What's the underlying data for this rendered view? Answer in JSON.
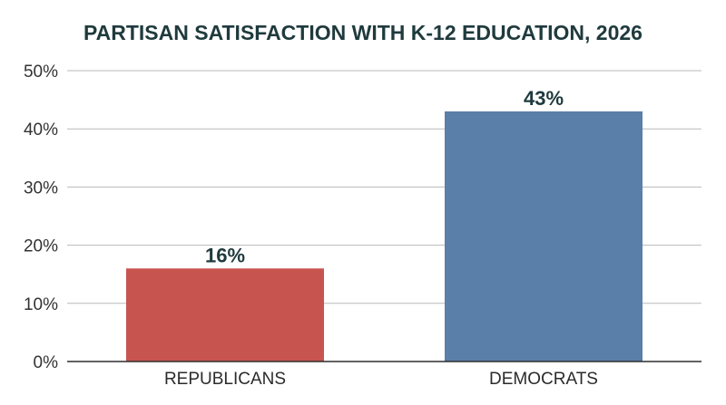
{
  "chart_data": {
    "type": "bar",
    "title": "PARTISAN SATISFACTION WITH K-12 EDUCATION, 2026",
    "categories": [
      "REPUBLICANS",
      "DEMOCRATS"
    ],
    "values": [
      16,
      43
    ],
    "data_labels": [
      "16%",
      "43%"
    ],
    "colors": [
      "#c85450",
      "#5a7fa8"
    ],
    "ylim": [
      0,
      50
    ],
    "yticks": [
      0,
      10,
      20,
      30,
      40,
      50
    ],
    "ytick_labels": [
      "0%",
      "10%",
      "20%",
      "30%",
      "40%",
      "50%"
    ],
    "xlabel": "",
    "ylabel": "",
    "grid": true,
    "legend": "none"
  }
}
